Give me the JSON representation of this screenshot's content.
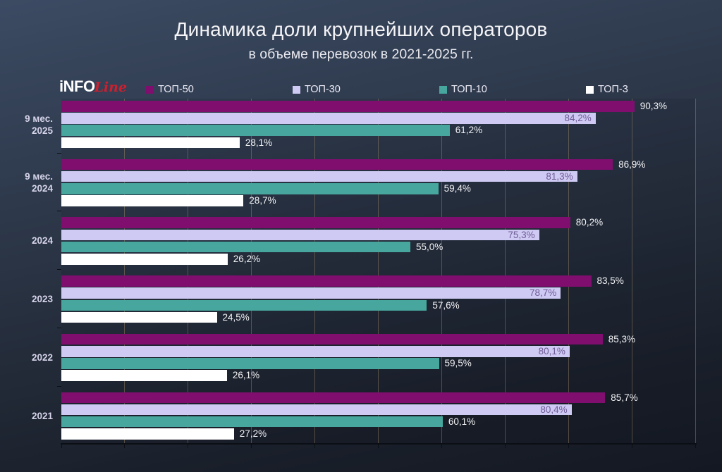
{
  "title": "Динамика доли крупнейших операторов",
  "subtitle": "в объеме перевозок в 2021-2025 гг.",
  "logo": {
    "part1": "iNFO",
    "part2": "Line",
    "brand_red": "#ce1f2e"
  },
  "colors": {
    "background_top": "#3c4b63",
    "background_bottom": "#141822",
    "gridline": "rgba(186,158,112,0.38)",
    "axis": "#0b0e14",
    "value_label_outside": "#f3f3f5",
    "value_label_inside": "#6f5b96",
    "category_label": "#d6d4ea"
  },
  "chart_data": {
    "type": "bar",
    "orientation": "horizontal",
    "title": "Динамика доли крупнейших операторов",
    "subtitle": "в объеме перевозок в 2021-2025 гг.",
    "categories": [
      "9 мес. 2025",
      "9 мес. 2024",
      "2024",
      "2023",
      "2022",
      "2021"
    ],
    "category_lines": [
      [
        "9 мес.",
        "2025"
      ],
      [
        "9 мес.",
        "2024"
      ],
      [
        "2024"
      ],
      [
        "2023"
      ],
      [
        "2022"
      ],
      [
        "2021"
      ]
    ],
    "series": [
      {
        "name": "ТОП-50",
        "color": "#800e6f",
        "values": [
          90.3,
          86.9,
          80.2,
          83.5,
          85.3,
          85.7
        ],
        "label_style": "outside"
      },
      {
        "name": "ТОП-30",
        "color": "#cfcaf3",
        "values": [
          84.2,
          81.3,
          75.3,
          78.7,
          80.1,
          80.4
        ],
        "label_style": "inside"
      },
      {
        "name": "ТОП-10",
        "color": "#47a69e",
        "values": [
          61.2,
          59.4,
          55.0,
          57.6,
          59.5,
          60.1
        ],
        "label_style": "outside"
      },
      {
        "name": "ТОП-3",
        "color": "#ffffff",
        "values": [
          28.1,
          28.7,
          26.2,
          24.5,
          26.1,
          27.2
        ],
        "label_style": "outside"
      }
    ],
    "xlim": [
      0,
      100
    ],
    "grid_step": 10,
    "grid": true,
    "legend_position": "top",
    "value_format": "percent-comma-1dp"
  }
}
